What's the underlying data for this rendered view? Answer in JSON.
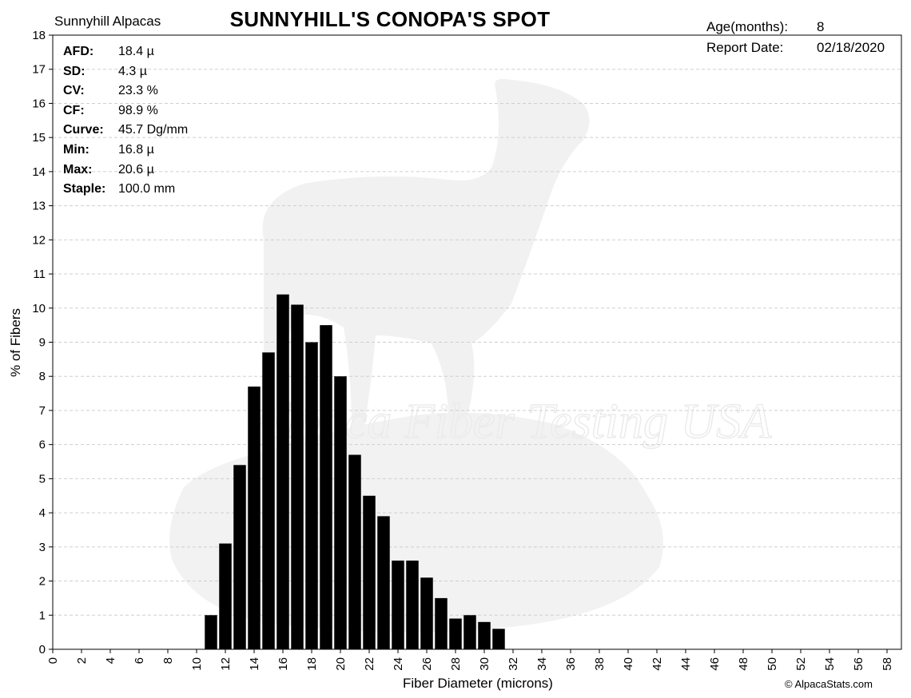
{
  "header": {
    "farm": "Sunnyhill Alpacas",
    "title": "SUNNYHILL'S CONOPA'S SPOT",
    "meta": [
      {
        "key": "Age(months):",
        "value": "8"
      },
      {
        "key": "Report Date:",
        "value": "02/18/2020"
      }
    ]
  },
  "stats": [
    {
      "key": "AFD:",
      "value": "18.4 µ"
    },
    {
      "key": "SD:",
      "value": "4.3 µ"
    },
    {
      "key": "CV:",
      "value": "23.3 %"
    },
    {
      "key": "CF:",
      "value": "98.9 %"
    },
    {
      "key": "Curve:",
      "value": "45.7 Dg/mm"
    },
    {
      "key": "Min:",
      "value": "16.8 µ"
    },
    {
      "key": "Max:",
      "value": "20.6 µ"
    },
    {
      "key": "Staple:",
      "value": "100.0 mm"
    }
  ],
  "watermark": "Alpaca Fiber Testing USA",
  "copyright": "© AlpacaStats.com",
  "chart_data": {
    "type": "bar",
    "title": "SUNNYHILL'S CONOPA'S SPOT",
    "xlabel": "Fiber Diameter (microns)",
    "ylabel": "% of Fibers",
    "xlim": [
      0,
      59
    ],
    "ylim": [
      0,
      18
    ],
    "x_ticks": [
      0,
      2,
      4,
      6,
      8,
      10,
      12,
      14,
      16,
      18,
      20,
      22,
      24,
      26,
      28,
      30,
      32,
      34,
      36,
      38,
      40,
      42,
      44,
      46,
      48,
      50,
      52,
      54,
      56,
      58
    ],
    "y_ticks": [
      0,
      1,
      2,
      3,
      4,
      5,
      6,
      7,
      8,
      9,
      10,
      11,
      12,
      13,
      14,
      15,
      16,
      17,
      18
    ],
    "grid": "horizontal dashed",
    "bar_color": "#000000",
    "x": [
      11,
      12,
      13,
      14,
      15,
      16,
      17,
      18,
      19,
      20,
      21,
      22,
      23,
      24,
      25,
      26,
      27,
      28,
      29,
      30,
      31
    ],
    "values": [
      1.0,
      3.1,
      5.4,
      7.7,
      8.7,
      10.4,
      10.1,
      9.0,
      9.5,
      8.0,
      5.7,
      4.5,
      3.9,
      2.6,
      2.6,
      2.1,
      1.5,
      0.9,
      1.0,
      0.8,
      0.6
    ]
  }
}
